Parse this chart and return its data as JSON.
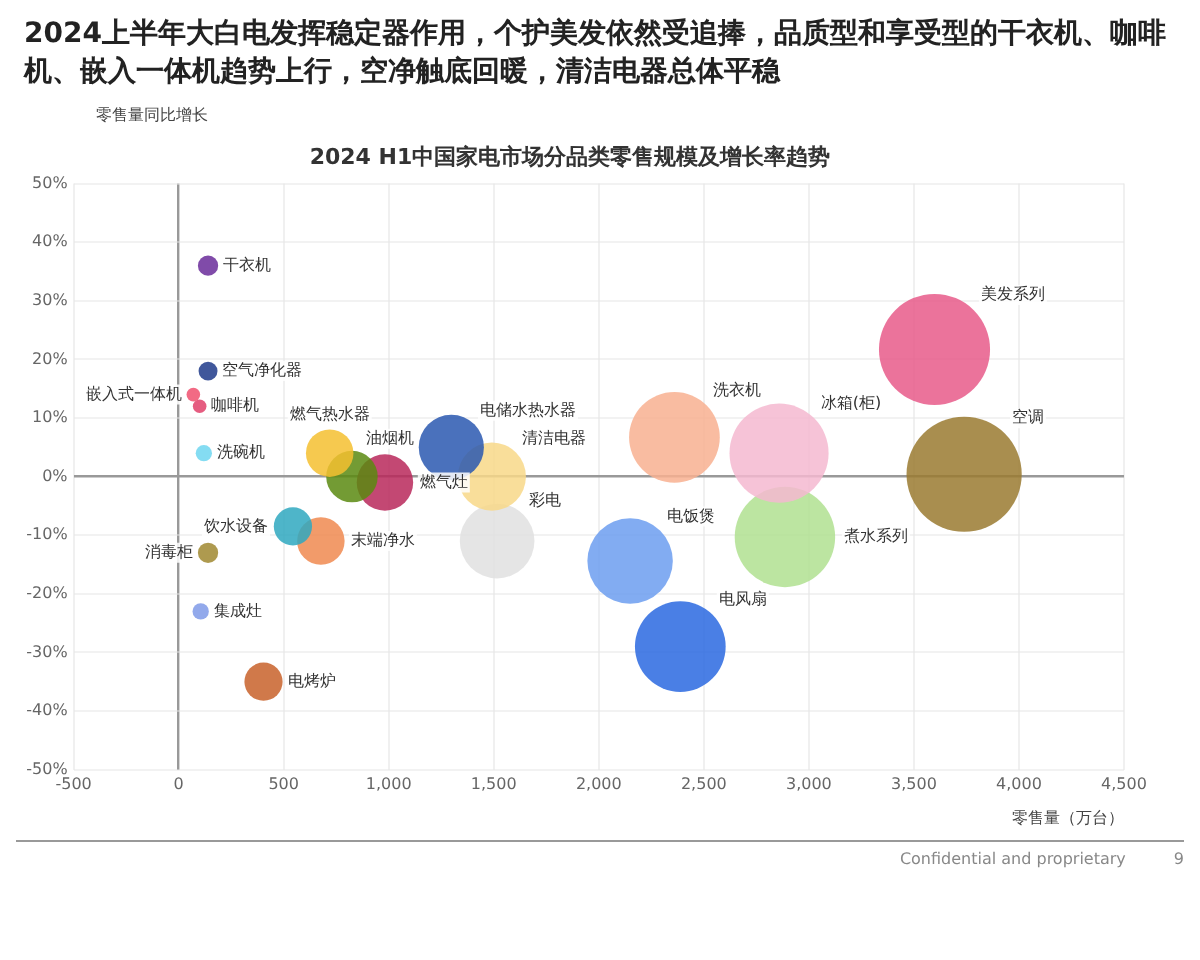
{
  "chart_data": {
    "type": "bubble",
    "title": "2024上半年大白电发挥稳定器作用，个护美发依然受追捧，品质型和享受型的干衣机、咖啡机、嵌入一体机趋势上行，空净触底回暖，清洁电器总体平稳",
    "subtitle": "2024 H1中国家电市场分品类零售规模及增长率趋势",
    "xlabel": "零售量（万台）",
    "ylabel": "零售量同比增长",
    "xlim": [
      -500,
      4500
    ],
    "xticks": [
      -500,
      0,
      500,
      {
        "value": 1000,
        "label": "1,000"
      },
      {
        "value": 1500,
        "label": "1,500"
      },
      {
        "value": 2000,
        "label": "2,000"
      },
      {
        "value": 2500,
        "label": "2,500"
      },
      {
        "value": 3000,
        "label": "3,000"
      },
      {
        "value": 3500,
        "label": "3,500"
      },
      {
        "value": 4000,
        "label": "4,000"
      },
      {
        "value": 4500,
        "label": "4,500"
      }
    ],
    "ylim": [
      -50,
      50
    ],
    "yticks": [
      {
        "value": -50,
        "label": "-50%"
      },
      {
        "value": -40,
        "label": "-40%"
      },
      {
        "value": -30,
        "label": "-30%"
      },
      {
        "value": -20,
        "label": "-20%"
      },
      {
        "value": -10,
        "label": "-10%"
      },
      {
        "value": 0,
        "label": "0%"
      },
      {
        "value": 10,
        "label": "10%"
      },
      {
        "value": 20,
        "label": "20%"
      },
      {
        "value": 30,
        "label": "30%"
      },
      {
        "value": 40,
        "label": "40%"
      },
      {
        "value": 50,
        "label": "50%"
      }
    ],
    "grid": true,
    "legend": false,
    "series": [
      {
        "name": "干衣机",
        "color": "#6a2c9a",
        "x": [
          140
        ],
        "values": [
          36
        ],
        "sizes": [
          0.031
        ]
      },
      {
        "name": "空气净化器",
        "color": "#1f3a8a",
        "x": [
          140
        ],
        "values": [
          18
        ],
        "sizes": [
          0.027
        ]
      },
      {
        "name": "嵌入式一体机",
        "color": "#f0506e",
        "x": [
          70
        ],
        "values": [
          14
        ],
        "sizes": [
          0.014
        ]
      },
      {
        "name": "咖啡机",
        "color": "#e0406a",
        "x": [
          100
        ],
        "values": [
          12
        ],
        "sizes": [
          0.014
        ]
      },
      {
        "name": "洗碗机",
        "color": "#6fd6f0",
        "x": [
          120
        ],
        "values": [
          4
        ],
        "sizes": [
          0.02
        ]
      },
      {
        "name": "消毒柜",
        "color": "#a08830",
        "x": [
          140
        ],
        "values": [
          -13
        ],
        "sizes": [
          0.031
        ]
      },
      {
        "name": "集成灶",
        "color": "#7f9ae8",
        "x": [
          105
        ],
        "values": [
          -23
        ],
        "sizes": [
          0.02
        ]
      },
      {
        "name": "电烤炉",
        "color": "#c8622a",
        "x": [
          404
        ],
        "values": [
          -35
        ],
        "sizes": [
          0.11
        ]
      },
      {
        "name": "饮水设备",
        "color": "#2fa8c0",
        "x": [
          544
        ],
        "values": [
          -8.5
        ],
        "sizes": [
          0.11
        ]
      },
      {
        "name": "末端净水",
        "color": "#f08a50",
        "x": [
          677
        ],
        "values": [
          -11
        ],
        "sizes": [
          0.17
        ]
      },
      {
        "name": "燃气热水器",
        "color": "#f5c030",
        "x": [
          719
        ],
        "values": [
          4
        ],
        "sizes": [
          0.17
        ]
      },
      {
        "name": "油烟机",
        "color": "#5a8a10",
        "x": [
          825
        ],
        "values": [
          0
        ],
        "sizes": [
          0.2
        ]
      },
      {
        "name": "燃气灶",
        "color": "#b8285a",
        "x": [
          982
        ],
        "values": [
          -1
        ],
        "sizes": [
          0.24
        ]
      },
      {
        "name": "电储水热水器",
        "color": "#2a58b0",
        "x": [
          1298
        ],
        "values": [
          5
        ],
        "sizes": [
          0.32
        ]
      },
      {
        "name": "清洁电器",
        "color": "#f8d888",
        "x": [
          1491
        ],
        "values": [
          0
        ],
        "sizes": [
          0.35
        ]
      },
      {
        "name": "彩电",
        "color": "#e0e0e0",
        "x": [
          1516
        ],
        "values": [
          -11
        ],
        "sizes": [
          0.42
        ]
      },
      {
        "name": "电饭煲",
        "color": "#6c9ef0",
        "x": [
          2149
        ],
        "values": [
          -14.4
        ],
        "sizes": [
          0.55
        ]
      },
      {
        "name": "电风扇",
        "color": "#2a68e0",
        "x": [
          2388
        ],
        "values": [
          -29
        ],
        "sizes": [
          0.62
        ]
      },
      {
        "name": "洗衣机",
        "color": "#f8b090",
        "x": [
          2360
        ],
        "values": [
          6.7
        ],
        "sizes": [
          0.62
        ]
      },
      {
        "name": "冰箱(柜)",
        "color": "#f4b8d0",
        "x": [
          2858
        ],
        "values": [
          4
        ],
        "sizes": [
          0.74
        ]
      },
      {
        "name": "煮水系列",
        "color": "#b0e090",
        "x": [
          2886
        ],
        "values": [
          -10.3
        ],
        "sizes": [
          0.76
        ]
      },
      {
        "name": "美发系列",
        "color": "#e85a8a",
        "x": [
          3598
        ],
        "values": [
          21.7
        ],
        "sizes": [
          0.93
        ]
      },
      {
        "name": "空调",
        "color": "#9a7a30",
        "x": [
          3739
        ],
        "values": [
          0.4
        ],
        "sizes": [
          1
        ]
      }
    ],
    "annotations": [
      "Confidential and proprietary",
      "9"
    ]
  }
}
